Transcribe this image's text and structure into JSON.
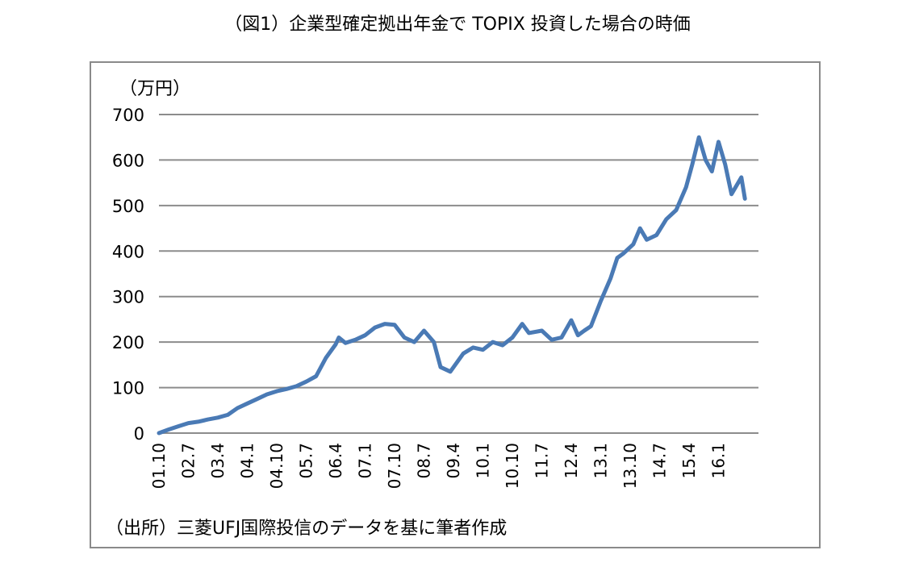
{
  "title": "（図1）企業型確定拠出年金で TOPIX 投資した場合の時価",
  "source_note": "（出所）三菱UFJ国際投信のデータを基に筆者作成",
  "colors": {
    "line": "#4a7ab5",
    "grid": "#8c8c8c",
    "frame": "#8a8a8a"
  },
  "chart_data": {
    "type": "line",
    "title": "（図1）企業型確定拠出年金で TOPIX 投資した場合の時価",
    "ylabel": "（万円）",
    "xlabel": "",
    "ylim": [
      0,
      700
    ],
    "yticks": [
      0,
      100,
      200,
      300,
      400,
      500,
      600,
      700
    ],
    "grid": true,
    "legend": "none",
    "xticks": [
      "01.10",
      "02.7",
      "03.4",
      "04.1",
      "04.10",
      "05.7",
      "06.4",
      "07.1",
      "07.10",
      "08.7",
      "09.4",
      "10.1",
      "10.10",
      "11.7",
      "12.4",
      "13.1",
      "13.10",
      "14.7",
      "15.4",
      "16.1"
    ],
    "series": [
      {
        "x": [
          2001.75,
          2002.0,
          2002.25,
          2002.5,
          2002.75,
          2003.0,
          2003.25,
          2003.5,
          2003.75,
          2004.0,
          2004.25,
          2004.5,
          2004.75,
          2005.0,
          2005.25,
          2005.5,
          2005.75,
          2006.0,
          2006.25,
          2006.33,
          2006.5,
          2006.75,
          2007.0,
          2007.25,
          2007.5,
          2007.75,
          2008.0,
          2008.25,
          2008.5,
          2008.75,
          2008.92,
          2009.17,
          2009.5,
          2009.75,
          2010.0,
          2010.25,
          2010.5,
          2010.75,
          2011.0,
          2011.17,
          2011.5,
          2011.75,
          2012.0,
          2012.25,
          2012.42,
          2012.58,
          2012.75,
          2013.0,
          2013.25,
          2013.42,
          2013.58,
          2013.83,
          2014.0,
          2014.17,
          2014.42,
          2014.67,
          2014.92,
          2015.17,
          2015.33,
          2015.5,
          2015.67,
          2015.83,
          2016.0,
          2016.17,
          2016.33,
          2016.58,
          2016.67
        ],
        "values": [
          0,
          8,
          15,
          22,
          25,
          30,
          34,
          40,
          55,
          65,
          75,
          85,
          92,
          97,
          103,
          113,
          125,
          165,
          195,
          210,
          198,
          205,
          215,
          232,
          240,
          238,
          210,
          200,
          225,
          200,
          145,
          135,
          175,
          188,
          183,
          200,
          193,
          210,
          240,
          220,
          225,
          205,
          210,
          248,
          215,
          225,
          235,
          290,
          340,
          385,
          395,
          415,
          450,
          425,
          435,
          470,
          490,
          540,
          590,
          650,
          600,
          575,
          640,
          590,
          525,
          562,
          515
        ]
      }
    ]
  }
}
